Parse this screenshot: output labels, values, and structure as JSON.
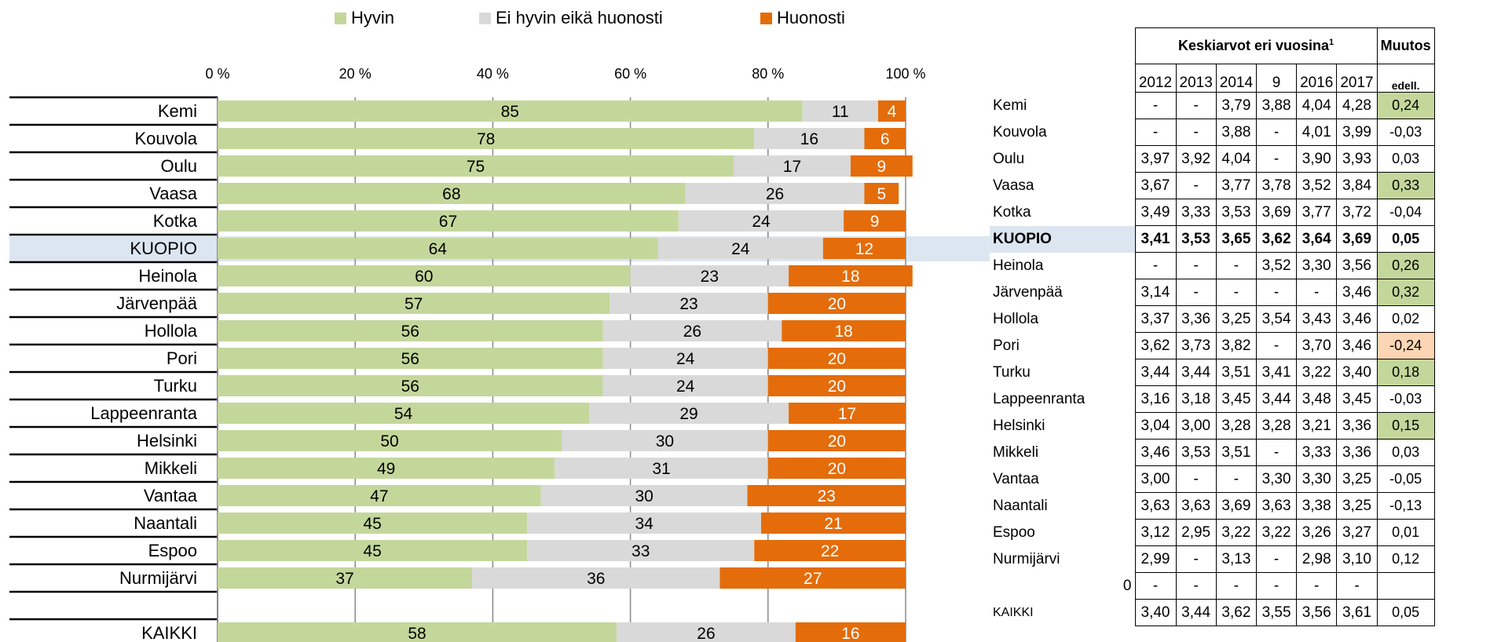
{
  "legend": [
    {
      "label": "Hyvin",
      "color": "#c4d79b"
    },
    {
      "label": "Ei hyvin eikä huonosti",
      "color": "#d9d9d9"
    },
    {
      "label": "Huonosti",
      "color": "#e46c0a"
    }
  ],
  "chart_data": {
    "type": "bar",
    "stacked": true,
    "orientation": "horizontal",
    "x_ticks": [
      "0 %",
      "20 %",
      "40 %",
      "60 %",
      "80 %",
      "100 %"
    ],
    "xlim": [
      0,
      100
    ],
    "grid": true,
    "legend_position": "top",
    "categories": [
      "Kemi",
      "Kouvola",
      "Oulu",
      "Vaasa",
      "Kotka",
      "KUOPIO",
      "Heinola",
      "Järvenpää",
      "Hollola",
      "Pori",
      "Turku",
      "Lappeenranta",
      "Helsinki",
      "Mikkeli",
      "Vantaa",
      "Naantali",
      "Espoo",
      "Nurmijärvi",
      "",
      "KAIKKI"
    ],
    "highlight_category": "KUOPIO",
    "series": [
      {
        "name": "Hyvin",
        "color": "#c4d79b",
        "label_color": "#000000",
        "values": [
          85,
          78,
          75,
          68,
          67,
          64,
          60,
          57,
          56,
          56,
          56,
          54,
          50,
          49,
          47,
          45,
          45,
          37,
          null,
          58
        ]
      },
      {
        "name": "Ei hyvin eikä huonosti",
        "color": "#d9d9d9",
        "label_color": "#000000",
        "values": [
          11,
          16,
          17,
          26,
          24,
          24,
          23,
          23,
          26,
          24,
          24,
          29,
          30,
          31,
          30,
          34,
          33,
          36,
          null,
          26
        ]
      },
      {
        "name": "Huonosti",
        "color": "#e46c0a",
        "label_color": "#ffffff",
        "values": [
          4,
          6,
          9,
          5,
          9,
          12,
          18,
          20,
          18,
          20,
          20,
          17,
          20,
          20,
          23,
          21,
          22,
          27,
          null,
          16
        ]
      }
    ]
  },
  "table": {
    "group_header": "Keskiarvot eri vuosina",
    "group_header_sup": "1",
    "change_header": "Muutos",
    "change_subheader": "edell.",
    "years": [
      "2012",
      "2013",
      "2014",
      "9",
      "2016",
      "2017"
    ],
    "rows": [
      {
        "city": "Kemi",
        "vals": [
          "-",
          "-",
          "3,79",
          "3,88",
          "4,04",
          "4,28"
        ],
        "change": "0,24",
        "tone": "pos"
      },
      {
        "city": "Kouvola",
        "vals": [
          "-",
          "-",
          "3,88",
          "-",
          "4,01",
          "3,99"
        ],
        "change": "-0,03",
        "tone": ""
      },
      {
        "city": "Oulu",
        "vals": [
          "3,97",
          "3,92",
          "4,04",
          "-",
          "3,90",
          "3,93"
        ],
        "change": "0,03",
        "tone": ""
      },
      {
        "city": "Vaasa",
        "vals": [
          "3,67",
          "-",
          "3,77",
          "3,78",
          "3,52",
          "3,84"
        ],
        "change": "0,33",
        "tone": "pos"
      },
      {
        "city": "Kotka",
        "vals": [
          "3,49",
          "3,33",
          "3,53",
          "3,69",
          "3,77",
          "3,72"
        ],
        "change": "-0,04",
        "tone": ""
      },
      {
        "city": "KUOPIO",
        "vals": [
          "3,41",
          "3,53",
          "3,65",
          "3,62",
          "3,64",
          "3,69"
        ],
        "change": "0,05",
        "tone": "",
        "bold": true
      },
      {
        "city": "Heinola",
        "vals": [
          "-",
          "-",
          "-",
          "3,52",
          "3,30",
          "3,56"
        ],
        "change": "0,26",
        "tone": "pos"
      },
      {
        "city": "Järvenpää",
        "vals": [
          "3,14",
          "-",
          "-",
          "-",
          "-",
          "3,46"
        ],
        "change": "0,32",
        "tone": "pos"
      },
      {
        "city": "Hollola",
        "vals": [
          "3,37",
          "3,36",
          "3,25",
          "3,54",
          "3,43",
          "3,46"
        ],
        "change": "0,02",
        "tone": ""
      },
      {
        "city": "Pori",
        "vals": [
          "3,62",
          "3,73",
          "3,82",
          "-",
          "3,70",
          "3,46"
        ],
        "change": "-0,24",
        "tone": "neg"
      },
      {
        "city": "Turku",
        "vals": [
          "3,44",
          "3,44",
          "3,51",
          "3,41",
          "3,22",
          "3,40"
        ],
        "change": "0,18",
        "tone": "pos"
      },
      {
        "city": "Lappeenranta",
        "vals": [
          "3,16",
          "3,18",
          "3,45",
          "3,44",
          "3,48",
          "3,45"
        ],
        "change": "-0,03",
        "tone": ""
      },
      {
        "city": "Helsinki",
        "vals": [
          "3,04",
          "3,00",
          "3,28",
          "3,28",
          "3,21",
          "3,36"
        ],
        "change": "0,15",
        "tone": "pos"
      },
      {
        "city": "Mikkeli",
        "vals": [
          "3,46",
          "3,53",
          "3,51",
          "-",
          "3,33",
          "3,36"
        ],
        "change": "0,03",
        "tone": ""
      },
      {
        "city": "Vantaa",
        "vals": [
          "3,00",
          "-",
          "-",
          "3,30",
          "3,30",
          "3,25"
        ],
        "change": "-0,05",
        "tone": ""
      },
      {
        "city": "Naantali",
        "vals": [
          "3,63",
          "3,63",
          "3,69",
          "3,63",
          "3,38",
          "3,25"
        ],
        "change": "-0,13",
        "tone": ""
      },
      {
        "city": "Espoo",
        "vals": [
          "3,12",
          "2,95",
          "3,22",
          "3,22",
          "3,26",
          "3,27"
        ],
        "change": "0,01",
        "tone": ""
      },
      {
        "city": "Nurmijärvi",
        "vals": [
          "2,99",
          "-",
          "3,13",
          "-",
          "2,98",
          "3,10"
        ],
        "change": "0,12",
        "tone": ""
      },
      {
        "city": "0",
        "vals": [
          "-",
          "-",
          "-",
          "-",
          "-",
          "-"
        ],
        "change": "",
        "tone": ""
      },
      {
        "city": "KAIKKI",
        "vals": [
          "3,40",
          "3,44",
          "3,62",
          "3,55",
          "3,56",
          "3,61"
        ],
        "change": "0,05",
        "tone": ""
      }
    ]
  }
}
